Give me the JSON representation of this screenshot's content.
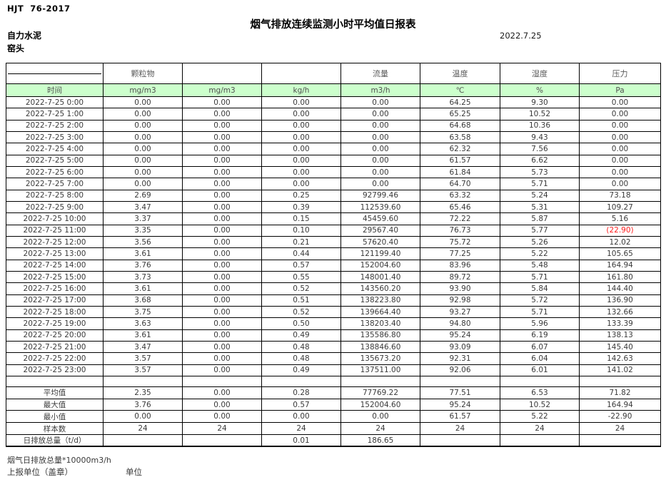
{
  "page": {
    "standard": "HJT  76-2017",
    "title": "烟气排放连续监测小时平均值日报表",
    "company": "自力水泥",
    "monitor_point": "窑头",
    "date": "2022.7.25"
  },
  "table": {
    "group_labels": [
      "",
      "颗粒物",
      "",
      "",
      "流量",
      "温度",
      "湿度",
      "压力"
    ],
    "unit_labels": [
      "时间",
      "mg/m3",
      "mg/m3",
      "kg/h",
      "m3/h",
      "℃",
      "%",
      "Pa"
    ],
    "colors": {
      "header_fill": "#ccffcc",
      "negative_red": "#ff2020"
    },
    "rows": [
      {
        "time": "2022-7-25 0:00",
        "values": [
          "0.00",
          "0.00",
          "0.00",
          "0.00",
          "64.25",
          "9.30",
          "0.00"
        ]
      },
      {
        "time": "2022-7-25 1:00",
        "values": [
          "0.00",
          "0.00",
          "0.00",
          "0.00",
          "65.25",
          "10.52",
          "0.00"
        ]
      },
      {
        "time": "2022-7-25 2:00",
        "values": [
          "0.00",
          "0.00",
          "0.00",
          "0.00",
          "64.68",
          "10.36",
          "0.00"
        ]
      },
      {
        "time": "2022-7-25 3:00",
        "values": [
          "0.00",
          "0.00",
          "0.00",
          "0.00",
          "63.58",
          "9.43",
          "0.00"
        ]
      },
      {
        "time": "2022-7-25 4:00",
        "values": [
          "0.00",
          "0.00",
          "0.00",
          "0.00",
          "62.32",
          "7.56",
          "0.00"
        ]
      },
      {
        "time": "2022-7-25 5:00",
        "values": [
          "0.00",
          "0.00",
          "0.00",
          "0.00",
          "61.57",
          "6.62",
          "0.00"
        ]
      },
      {
        "time": "2022-7-25 6:00",
        "values": [
          "0.00",
          "0.00",
          "0.00",
          "0.00",
          "61.84",
          "5.73",
          "0.00"
        ]
      },
      {
        "time": "2022-7-25 7:00",
        "values": [
          "0.00",
          "0.00",
          "0.00",
          "0.00",
          "64.70",
          "5.71",
          "0.00"
        ]
      },
      {
        "time": "2022-7-25 8:00",
        "values": [
          "2.69",
          "0.00",
          "0.25",
          "92799.46",
          "63.32",
          "5.24",
          "73.18"
        ]
      },
      {
        "time": "2022-7-25 9:00",
        "values": [
          "3.47",
          "0.00",
          "0.39",
          "112539.60",
          "65.46",
          "5.31",
          "109.27"
        ]
      },
      {
        "time": "2022-7-25 10:00",
        "values": [
          "3.37",
          "0.00",
          "0.15",
          "45459.60",
          "72.22",
          "5.87",
          "5.16"
        ]
      },
      {
        "time": "2022-7-25 11:00",
        "values": [
          "3.35",
          "0.00",
          "0.10",
          "29567.40",
          "76.73",
          "5.77",
          "(22.90)"
        ]
      },
      {
        "time": "2022-7-25 12:00",
        "values": [
          "3.56",
          "0.00",
          "0.21",
          "57620.40",
          "75.72",
          "5.26",
          "12.02"
        ]
      },
      {
        "time": "2022-7-25 13:00",
        "values": [
          "3.61",
          "0.00",
          "0.44",
          "121199.40",
          "77.25",
          "5.22",
          "105.65"
        ]
      },
      {
        "time": "2022-7-25 14:00",
        "values": [
          "3.76",
          "0.00",
          "0.57",
          "152004.60",
          "83.96",
          "5.48",
          "164.94"
        ]
      },
      {
        "time": "2022-7-25 15:00",
        "values": [
          "3.73",
          "0.00",
          "0.55",
          "148001.40",
          "89.72",
          "5.71",
          "161.80"
        ]
      },
      {
        "time": "2022-7-25 16:00",
        "values": [
          "3.61",
          "0.00",
          "0.52",
          "143560.20",
          "93.90",
          "5.84",
          "144.40"
        ]
      },
      {
        "time": "2022-7-25 17:00",
        "values": [
          "3.68",
          "0.00",
          "0.51",
          "138223.80",
          "92.98",
          "5.72",
          "136.90"
        ]
      },
      {
        "time": "2022-7-25 18:00",
        "values": [
          "3.75",
          "0.00",
          "0.52",
          "139664.40",
          "93.27",
          "5.71",
          "132.66"
        ]
      },
      {
        "time": "2022-7-25 19:00",
        "values": [
          "3.63",
          "0.00",
          "0.50",
          "138203.40",
          "94.80",
          "5.96",
          "133.39"
        ]
      },
      {
        "time": "2022-7-25 20:00",
        "values": [
          "3.61",
          "0.00",
          "0.49",
          "135586.80",
          "95.24",
          "6.19",
          "138.13"
        ]
      },
      {
        "time": "2022-7-25 21:00",
        "values": [
          "3.47",
          "0.00",
          "0.48",
          "138846.60",
          "93.09",
          "6.07",
          "145.40"
        ]
      },
      {
        "time": "2022-7-25 22:00",
        "values": [
          "3.57",
          "0.00",
          "0.48",
          "135673.20",
          "92.31",
          "6.04",
          "142.63"
        ]
      },
      {
        "time": "2022-7-25 23:00",
        "values": [
          "3.57",
          "0.00",
          "0.49",
          "137511.00",
          "92.06",
          "6.01",
          "141.02"
        ]
      }
    ],
    "summary": [
      {
        "label": "平均值",
        "values": [
          "2.35",
          "0.00",
          "0.28",
          "77769.22",
          "77.51",
          "6.53",
          "71.82"
        ]
      },
      {
        "label": "最大值",
        "values": [
          "3.76",
          "0.00",
          "0.57",
          "152004.60",
          "95.24",
          "10.52",
          "164.94"
        ]
      },
      {
        "label": "最小值",
        "values": [
          "0.00",
          "0.00",
          "0.00",
          "0.00",
          "61.57",
          "5.22",
          "-22.90"
        ]
      },
      {
        "label": "样本数",
        "values": [
          "24",
          "24",
          "24",
          "24",
          "24",
          "24",
          "24"
        ]
      },
      {
        "label": "日排放总量（t/d）",
        "values": [
          "",
          "",
          "0.01",
          "186.65",
          "",
          "",
          ""
        ]
      }
    ]
  },
  "footer": {
    "note": "烟气日排放总量*10000m3/h",
    "report_unit_label": "上报单位（盖章）",
    "unit_label": "单位"
  }
}
